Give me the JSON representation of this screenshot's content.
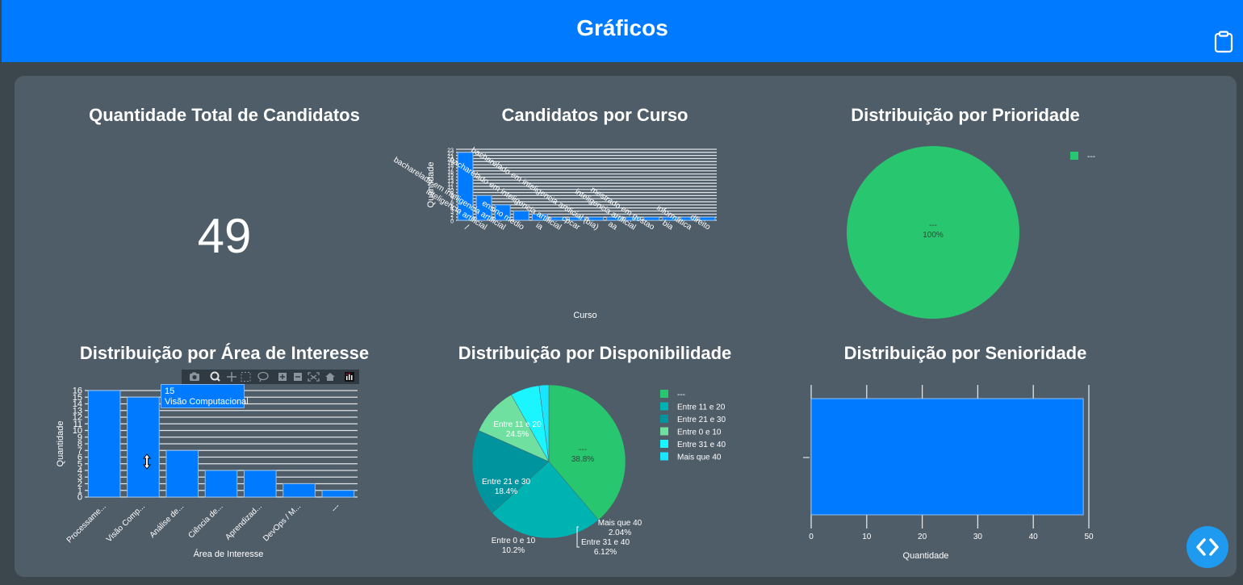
{
  "header": {
    "title": "Gráficos",
    "clipboard_icon": "clipboard-icon"
  },
  "sections": {
    "total": {
      "title": "Quantidade Total de Candidatos",
      "value": "49"
    },
    "curso": {
      "title": "Candidatos por Curso"
    },
    "prioridade": {
      "title": "Distribuição por Prioridade"
    },
    "area": {
      "title": "Distribuição por Área de Interesse"
    },
    "disponibilidade": {
      "title": "Distribuição por Disponibilidade"
    },
    "senioridade": {
      "title": "Distribuição por Senioridade"
    }
  },
  "modebar": {
    "icons": [
      "camera-icon",
      "zoom-icon",
      "pan-icon",
      "box-select-icon",
      "lasso-icon",
      "zoom-in-icon",
      "zoom-out-icon",
      "autoscale-icon",
      "reset-axes-icon",
      "plotly-logo-icon"
    ]
  },
  "tooltip": {
    "value": "15",
    "label": "Visão Computacional"
  },
  "fab": {
    "icon": "code-icon"
  },
  "colors": {
    "header": "#007bff",
    "bar": "#007bff",
    "card": "#4f5d69",
    "background": "#3b464d",
    "pie_green": "#28c76f"
  },
  "chart_data": [
    {
      "id": "curso",
      "type": "bar",
      "title": "Candidatos por Curso",
      "xlabel": "Curso",
      "ylabel": "Quantidade",
      "ylim": [
        0,
        23
      ],
      "yticks": [
        0,
        1,
        2,
        3,
        4,
        5,
        6,
        7,
        8,
        9,
        10,
        11,
        12,
        13,
        14,
        15,
        16,
        17,
        18,
        19,
        20,
        21,
        22,
        23
      ],
      "categories": [
        "/",
        "inteligencia artificial",
        "bacharelado em inteligencia artificial",
        "ensino medio",
        "ia",
        "bacharelado em inteligencia artificial",
        "cpcar",
        "bacharelado em inteligencia artificial (bia)",
        "aa",
        "inteligencia artificial",
        "mestrado em gestao",
        "bia",
        "informatica",
        "direito"
      ],
      "values": [
        22,
        8,
        5,
        3,
        2,
        1,
        1,
        1,
        1,
        1,
        1,
        1,
        1,
        1
      ],
      "grid": true
    },
    {
      "id": "prioridade",
      "type": "pie",
      "title": "Distribuição por Prioridade",
      "labels": [
        "---"
      ],
      "values": [
        49
      ],
      "percent_labels": [
        "100%"
      ],
      "colors": [
        "#28c76f"
      ],
      "legend": [
        {
          "label": "---",
          "color": "#28c76f"
        }
      ],
      "legend_position": "top-right"
    },
    {
      "id": "area",
      "type": "bar",
      "title": "Distribuição por Área de Interesse",
      "xlabel": "Área de Interesse",
      "ylabel": "Quantidade",
      "ylim": [
        0,
        16
      ],
      "yticks": [
        0,
        1,
        2,
        3,
        4,
        5,
        6,
        7,
        8,
        9,
        10,
        11,
        12,
        13,
        14,
        15,
        16
      ],
      "categories": [
        "Processame...",
        "Visão Comp...",
        "Análise de...",
        "Ciência de...",
        "Aprendizad...",
        "DevOps / M...",
        "---"
      ],
      "values": [
        16,
        15,
        7,
        4,
        4,
        2,
        1
      ],
      "grid": true
    },
    {
      "id": "disponibilidade",
      "type": "pie",
      "title": "Distribuição por Disponibilidade",
      "labels": [
        "---",
        "Entre 11 e 20",
        "Entre 21 e 30",
        "Entre 0 e 10",
        "Entre 31 e 40",
        "Mais que 40"
      ],
      "values": [
        19,
        12,
        9,
        5,
        3,
        1
      ],
      "percent_labels": [
        "38.8%",
        "24.5%",
        "18.4%",
        "10.2%",
        "6.12%",
        "2.04%"
      ],
      "colors": [
        "#28c76f",
        "#00b3b3",
        "#00959e",
        "#6fe0a0",
        "#1af5ff",
        "#1ae5ff"
      ],
      "legend": [
        {
          "label": "---",
          "color": "#28c76f"
        },
        {
          "label": "Entre 11 e 20",
          "color": "#00b3b3"
        },
        {
          "label": "Entre 21 e 30",
          "color": "#00959e"
        },
        {
          "label": "Entre 0 e 10",
          "color": "#6fe0a0"
        },
        {
          "label": "Entre 31 e 40",
          "color": "#1af5ff"
        },
        {
          "label": "Mais que 40",
          "color": "#1ae5ff"
        }
      ],
      "legend_position": "right"
    },
    {
      "id": "senioridade",
      "type": "bar",
      "orientation": "horizontal",
      "title": "Distribuição por Senioridade",
      "xlabel": "Quantidade",
      "ylabel": "",
      "xlim": [
        0,
        50
      ],
      "xticks": [
        0,
        10,
        20,
        30,
        40,
        50
      ],
      "categories": [
        "---"
      ],
      "values": [
        49
      ],
      "grid": true
    }
  ]
}
